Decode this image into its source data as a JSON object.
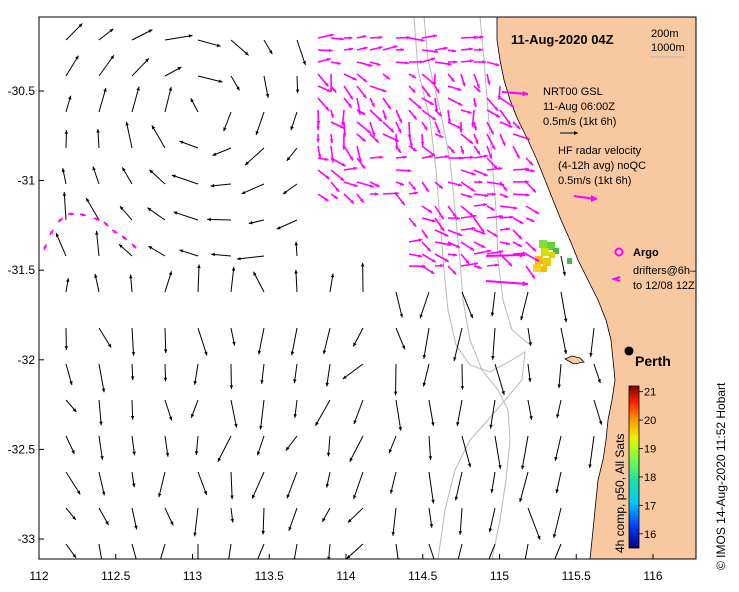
{
  "title": "11-Aug-2020 04Z",
  "depth_legend": [
    "200m",
    "1000m"
  ],
  "legend": {
    "nrt_lines": [
      "NRT00 GSL",
      "11-Aug 06:00Z",
      "0.5m/s (1kt 6h)"
    ],
    "hf_lines": [
      "HF radar velocity",
      "(4-12h avg) noQC",
      "0.5m/s (1kt 6h)"
    ],
    "argo": "Argo",
    "drifters_lines": [
      "drifters@6h–",
      "to 12/08 12Z"
    ]
  },
  "city": "Perth",
  "colorbar": {
    "label": "4h comp, p50, All Sats",
    "ticks": [
      "16",
      "17",
      "18",
      "19",
      "20",
      "21"
    ],
    "min": 15.5,
    "max": 21.2
  },
  "credit": "©  IMOS 14-Aug-2020 11:52 Hobart",
  "axes": {
    "lon_ticks": [
      "112",
      "112.5",
      "113",
      "113.5",
      "114",
      "114.5",
      "115",
      "115.5",
      "116"
    ],
    "lat_ticks": [
      "-30.5",
      "-31",
      "-31.5",
      "-32",
      "-32.5",
      "-33"
    ]
  },
  "colors": {
    "land": "#f8c8a0",
    "model_arrow": "#000000",
    "hf_arrow": "#ff00ff",
    "isobath": "#b8b8b8"
  }
}
